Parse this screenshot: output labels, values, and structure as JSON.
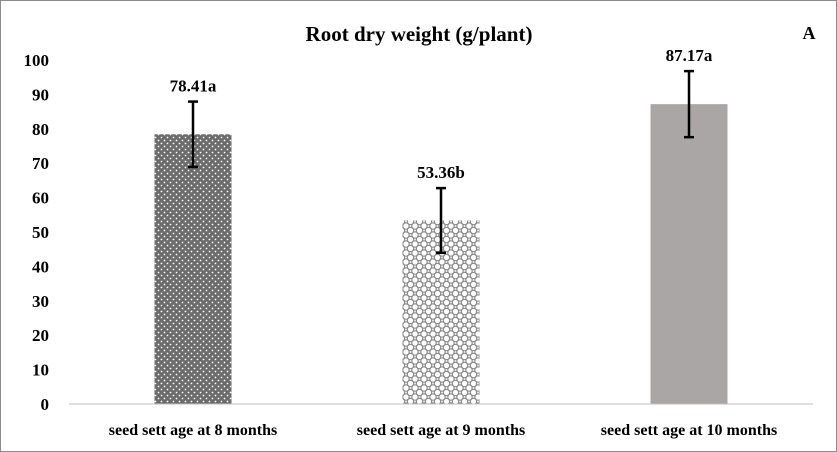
{
  "chart_data": {
    "type": "bar",
    "title": "Root dry weight (g/plant)",
    "panel_label": "A",
    "categories": [
      "seed sett age at 8 months",
      "seed sett age at 9 months",
      "seed sett age at 10 months"
    ],
    "values": [
      78.41,
      53.36,
      87.17
    ],
    "errors": [
      9.5,
      9.4,
      9.6
    ],
    "data_labels": [
      "78.41a",
      "53.36b",
      "87.17a"
    ],
    "ylim": [
      0,
      100
    ],
    "yticks": [
      0,
      10,
      20,
      30,
      40,
      50,
      60,
      70,
      80,
      90,
      100
    ],
    "grid": false,
    "legend": "none",
    "bar_fills": [
      "dotted-dark",
      "lattice-light",
      "solid-gray"
    ],
    "colors": {
      "dark": "#6b6b6b",
      "light": "#ffffff",
      "solid": "#aaa6a6",
      "lattice": "#8a8a8a",
      "error": "#000000"
    }
  }
}
